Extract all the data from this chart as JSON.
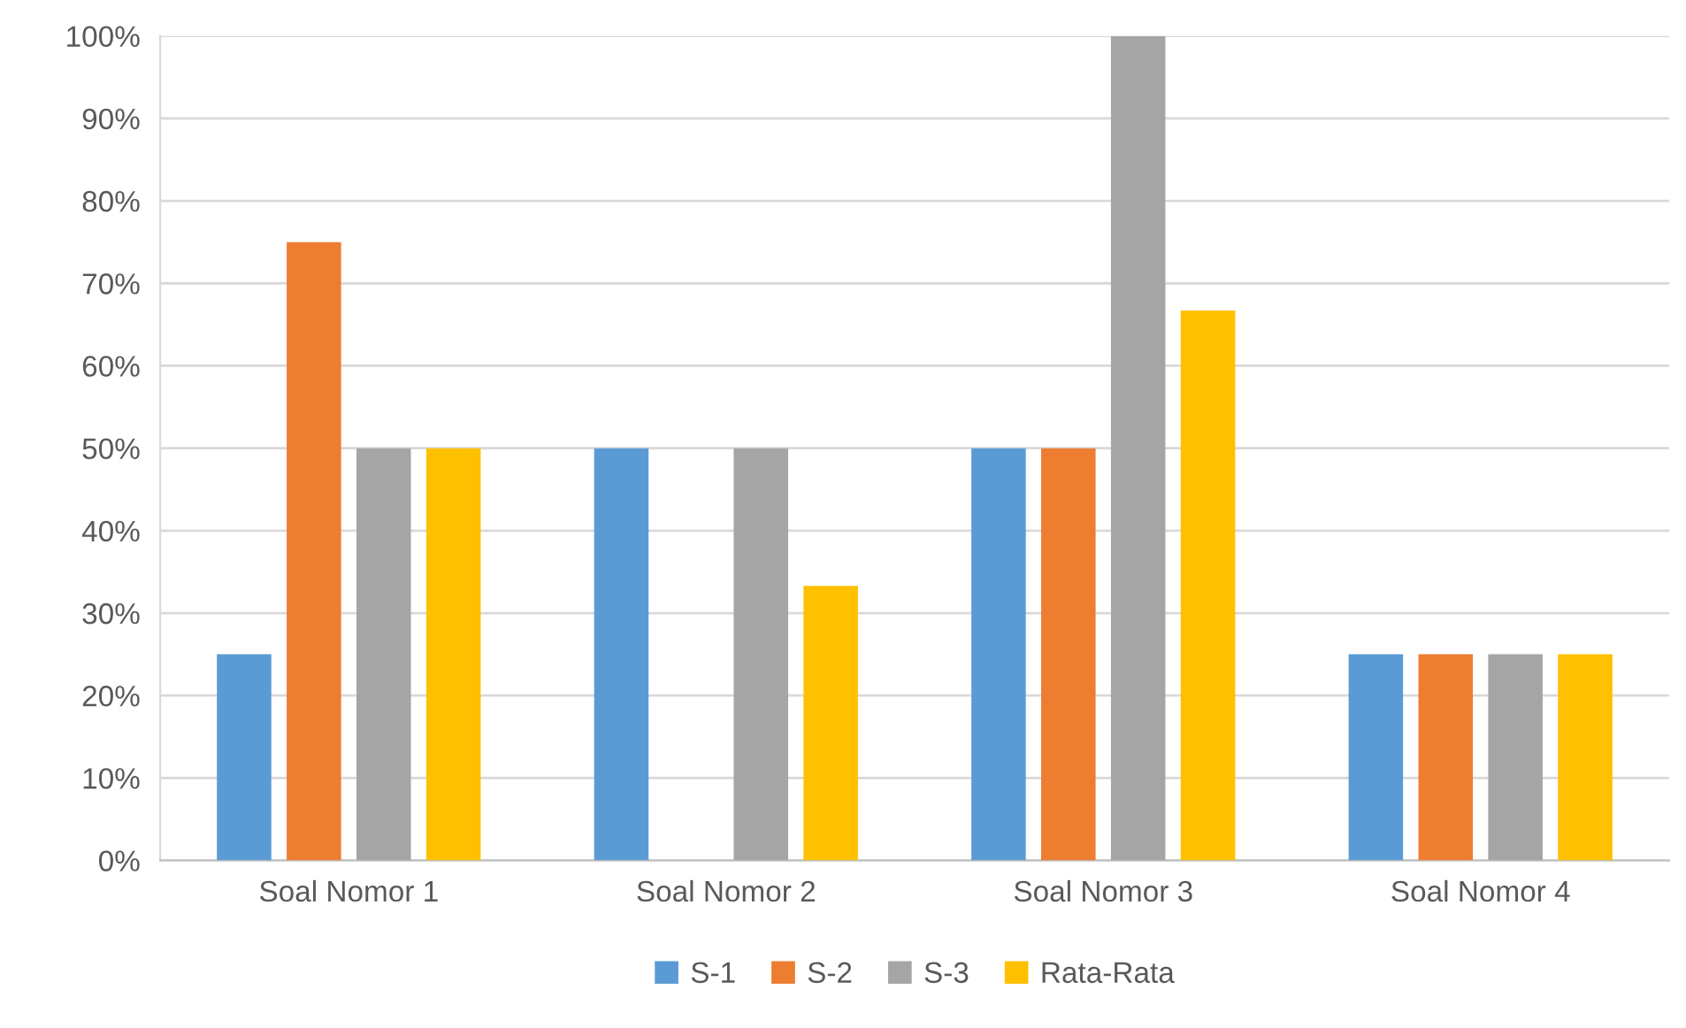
{
  "chart_data": {
    "type": "bar",
    "categories": [
      "Soal Nomor 1",
      "Soal Nomor 2",
      "Soal Nomor 3",
      "Soal Nomor 4"
    ],
    "series": [
      {
        "name": "S-1",
        "color": "#5b9bd5",
        "values": [
          25,
          50,
          50,
          25
        ]
      },
      {
        "name": "S-2",
        "color": "#ed7d31",
        "values": [
          75,
          0,
          50,
          25
        ]
      },
      {
        "name": "S-3",
        "color": "#a5a5a5",
        "values": [
          50,
          50,
          100,
          25
        ]
      },
      {
        "name": "Rata-Rata",
        "color": "#ffc000",
        "values": [
          50,
          33.3,
          66.7,
          25
        ]
      }
    ],
    "ylim": [
      0,
      100
    ],
    "yticks": [
      {
        "value": 0,
        "label": "0%"
      },
      {
        "value": 10,
        "label": "10%"
      },
      {
        "value": 20,
        "label": "20%"
      },
      {
        "value": 30,
        "label": "30%"
      },
      {
        "value": 40,
        "label": "40%"
      },
      {
        "value": 50,
        "label": "50%"
      },
      {
        "value": 60,
        "label": "60%"
      },
      {
        "value": 70,
        "label": "70%"
      },
      {
        "value": 80,
        "label": "80%"
      },
      {
        "value": 90,
        "label": "90%"
      },
      {
        "value": 100,
        "label": "100%"
      }
    ],
    "grid": "y",
    "legend": "bottom"
  }
}
